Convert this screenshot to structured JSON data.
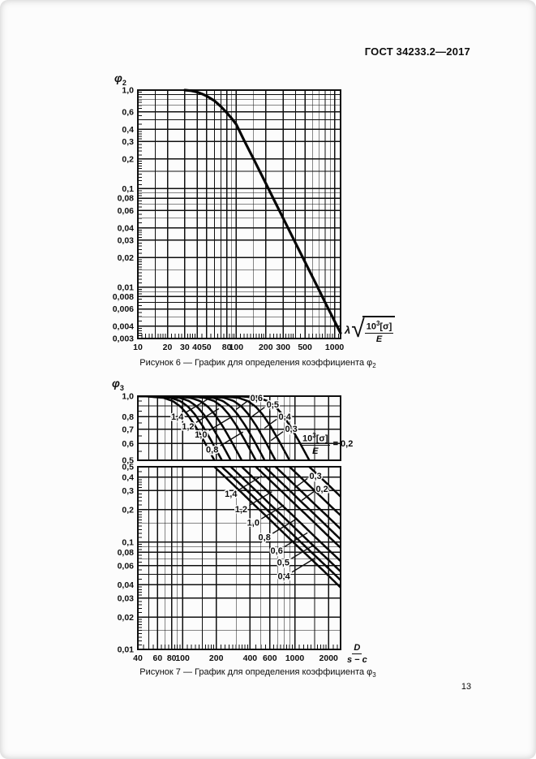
{
  "page": {
    "header_title": "ГОСТ 34233.2—2017",
    "page_number": "13"
  },
  "figure6": {
    "axis_head": {
      "symbol": "φ",
      "sub": "2"
    },
    "x_title": {
      "lambda": "λ",
      "radical": "√",
      "num_base": "10",
      "num_exp": "3",
      "num_sigma": "[σ]",
      "den": "E"
    },
    "caption": {
      "text": "Рисунок 6 — График для определения коэффициента φ",
      "sub": "2"
    }
  },
  "figure7": {
    "axis_head": {
      "symbol": "φ",
      "sub": "3"
    },
    "annotation": {
      "num_base": "10",
      "num_exp": "3",
      "num_sigma": "[σ]",
      "den": "E",
      "equals": "= 0,2"
    },
    "x_title": {
      "num": "D",
      "den": "s − c"
    },
    "caption": {
      "text": "Рисунок 7 — График для определения коэффициента φ",
      "sub": "3"
    }
  },
  "chart_data": [
    {
      "type": "line",
      "figure": "Рисунок 6",
      "title": "График для определения коэффициента φ2",
      "xlabel": "λ√(10³[σ]/E)",
      "ylabel": "φ2",
      "xscale": "log",
      "yscale": "log",
      "xlim": [
        10,
        1150
      ],
      "ylim": [
        0.003,
        1.0
      ],
      "grid": true,
      "x_ticks": [
        {
          "v": 10,
          "t": "10"
        },
        {
          "v": 20,
          "t": "20"
        },
        {
          "v": 30,
          "t": "30"
        },
        {
          "v": 40,
          "t": "40"
        },
        {
          "v": 50,
          "t": "50"
        },
        {
          "v": 80,
          "t": "80"
        },
        {
          "v": 100,
          "t": "100"
        },
        {
          "v": 200,
          "t": "200"
        },
        {
          "v": 300,
          "t": "300"
        },
        {
          "v": 500,
          "t": "500"
        },
        {
          "v": 1000,
          "t": "1000"
        }
      ],
      "x_minor": [
        15,
        60,
        70,
        90,
        150,
        400,
        600,
        700,
        800,
        900
      ],
      "y_ticks": [
        {
          "v": 1.0,
          "t": "1,0"
        },
        {
          "v": 0.6,
          "t": "0,6"
        },
        {
          "v": 0.4,
          "t": "0,4"
        },
        {
          "v": 0.3,
          "t": "0,3"
        },
        {
          "v": 0.2,
          "t": "0,2"
        },
        {
          "v": 0.1,
          "t": "0,1"
        },
        {
          "v": 0.08,
          "t": "0,08"
        },
        {
          "v": 0.06,
          "t": "0,06"
        },
        {
          "v": 0.04,
          "t": "0,04"
        },
        {
          "v": 0.03,
          "t": "0,03"
        },
        {
          "v": 0.02,
          "t": "0,02"
        },
        {
          "v": 0.01,
          "t": "0,01"
        },
        {
          "v": 0.008,
          "t": "0,008"
        },
        {
          "v": 0.006,
          "t": "0,006"
        },
        {
          "v": 0.004,
          "t": "0,004"
        },
        {
          "v": 0.003,
          "t": "0,003"
        }
      ],
      "y_minor": [
        0.9,
        0.8,
        0.7,
        0.5,
        0.15,
        0.09,
        0.07,
        0.05,
        0.015,
        0.009,
        0.007,
        0.005
      ],
      "series": [
        {
          "name": "φ2",
          "points": [
            [
              30,
              1.0
            ],
            [
              35,
              0.985
            ],
            [
              40,
              0.955
            ],
            [
              45,
              0.915
            ],
            [
              50,
              0.87
            ],
            [
              60,
              0.78
            ],
            [
              70,
              0.68
            ],
            [
              80,
              0.59
            ],
            [
              90,
              0.515
            ],
            [
              100,
              0.45
            ],
            [
              120,
              0.31
            ],
            [
              150,
              0.2
            ],
            [
              200,
              0.113
            ],
            [
              250,
              0.072
            ],
            [
              300,
              0.05
            ],
            [
              400,
              0.028
            ],
            [
              500,
              0.018
            ],
            [
              600,
              0.0125
            ],
            [
              700,
              0.0092
            ],
            [
              800,
              0.007
            ],
            [
              1000,
              0.0045
            ],
            [
              1150,
              0.0034
            ]
          ]
        }
      ]
    },
    {
      "type": "line",
      "figure": "Рисунок 7",
      "title": "График для определения коэффициента φ3",
      "xlabel": "D/(s−c)",
      "ylabel": "φ3",
      "xscale": "log",
      "yscale": "log, broken axis: upper panel 0.5–1.0 expanded, lower panel 0.01–0.5",
      "xlim": [
        40,
        2560
      ],
      "parameter_label": "10³[σ]/E",
      "x_ticks": [
        {
          "v": 40,
          "t": "40"
        },
        {
          "v": 60,
          "t": "60"
        },
        {
          "v": 80,
          "t": "80"
        },
        {
          "v": 100,
          "t": "100"
        },
        {
          "v": 200,
          "t": "200"
        },
        {
          "v": 400,
          "t": "400"
        },
        {
          "v": 600,
          "t": "600"
        },
        {
          "v": 1000,
          "t": "1000"
        },
        {
          "v": 2000,
          "t": "2000"
        }
      ],
      "x_minor": [
        50,
        70,
        90,
        150,
        300,
        500,
        700,
        800,
        900,
        1500
      ],
      "panels": [
        {
          "ylim": [
            0.5,
            1.0
          ],
          "y_ticks": [
            {
              "v": 1.0,
              "t": "1,0"
            },
            {
              "v": 0.8,
              "t": "0,8"
            },
            {
              "v": 0.7,
              "t": "0,7"
            },
            {
              "v": 0.6,
              "t": "0,6"
            },
            {
              "v": 0.5,
              "t": "0,5"
            }
          ],
          "y_minor": [
            0.9
          ]
        },
        {
          "ylim": [
            0.01,
            0.5
          ],
          "y_ticks": [
            {
              "v": 0.5,
              "t": "0,5"
            },
            {
              "v": 0.4,
              "t": "0,4"
            },
            {
              "v": 0.3,
              "t": "0,3"
            },
            {
              "v": 0.2,
              "t": "0,2"
            },
            {
              "v": 0.1,
              "t": "0,1"
            },
            {
              "v": 0.08,
              "t": "0,08"
            },
            {
              "v": 0.06,
              "t": "0,06"
            },
            {
              "v": 0.04,
              "t": "0,04"
            },
            {
              "v": 0.03,
              "t": "0,03"
            },
            {
              "v": 0.02,
              "t": "0,02"
            },
            {
              "v": 0.01,
              "t": "0,01"
            }
          ],
          "y_minor": [
            0.15,
            0.09,
            0.07,
            0.05,
            0.015
          ]
        }
      ],
      "series": [
        {
          "name": "1,4",
          "param": 1.4,
          "x_at_phi_0_5": 193
        },
        {
          "name": "1,2",
          "param": 1.2,
          "x_at_phi_0_5": 225
        },
        {
          "name": "1,0",
          "param": 1.0,
          "x_at_phi_0_5": 270
        },
        {
          "name": "0,8",
          "param": 0.8,
          "x_at_phi_0_5": 338
        },
        {
          "name": "0,6",
          "param": 0.6,
          "x_at_phi_0_5": 451
        },
        {
          "name": "0,5",
          "param": 0.5,
          "x_at_phi_0_5": 541
        },
        {
          "name": "0,4",
          "param": 0.4,
          "x_at_phi_0_5": 676
        },
        {
          "name": "0,3",
          "param": 0.3,
          "x_at_phi_0_5": 901
        },
        {
          "name": "0,2",
          "param": 0.2,
          "x_at_phi_0_5": 1352
        }
      ],
      "master_profile": {
        "note": "all curves share this shape vs r = x / xk, where xk = x_at_phi_0_5 / 2.0",
        "r": [
          0.3,
          0.5,
          0.7,
          0.85,
          1.0,
          1.15,
          1.35,
          1.6,
          1.9,
          2.3,
          2.8,
          3.5,
          4.4,
          5.6,
          7.1,
          9.0,
          11.5,
          15,
          19,
          25,
          32
        ],
        "phi": [
          1.0,
          0.997,
          0.982,
          0.948,
          0.891,
          0.819,
          0.722,
          0.619,
          0.524,
          0.434,
          0.357,
          0.286,
          0.227,
          0.179,
          0.141,
          0.111,
          0.087,
          0.067,
          0.053,
          0.04,
          0.031
        ]
      },
      "curve_labels_top": [
        {
          "t": "1,4",
          "x": 90,
          "phi": 0.8
        },
        {
          "t": "1,2",
          "x": 112,
          "phi": 0.72
        },
        {
          "t": "1,0",
          "x": 146,
          "phi": 0.66
        },
        {
          "t": "0,8",
          "x": 184,
          "phi": 0.56
        },
        {
          "t": "0,6",
          "x": 456,
          "phi": 0.98
        },
        {
          "t": "0,5",
          "x": 636,
          "phi": 0.91
        },
        {
          "t": "0,4",
          "x": 815,
          "phi": 0.8
        },
        {
          "t": "0,3",
          "x": 930,
          "phi": 0.7
        }
      ],
      "curve_labels_bottom": [
        {
          "t": "0,3",
          "x": 1530,
          "phi": 0.41
        },
        {
          "t": "0,2",
          "x": 1750,
          "phi": 0.31
        },
        {
          "t": "1,4",
          "x": 270,
          "phi": 0.28
        },
        {
          "t": "1,2",
          "x": 333,
          "phi": 0.2
        },
        {
          "t": "1,0",
          "x": 427,
          "phi": 0.15
        },
        {
          "t": "0,8",
          "x": 538,
          "phi": 0.11
        },
        {
          "t": "0,6",
          "x": 690,
          "phi": 0.083
        },
        {
          "t": "0,5",
          "x": 790,
          "phi": 0.064
        },
        {
          "t": "0,4",
          "x": 800,
          "phi": 0.048
        }
      ]
    }
  ]
}
